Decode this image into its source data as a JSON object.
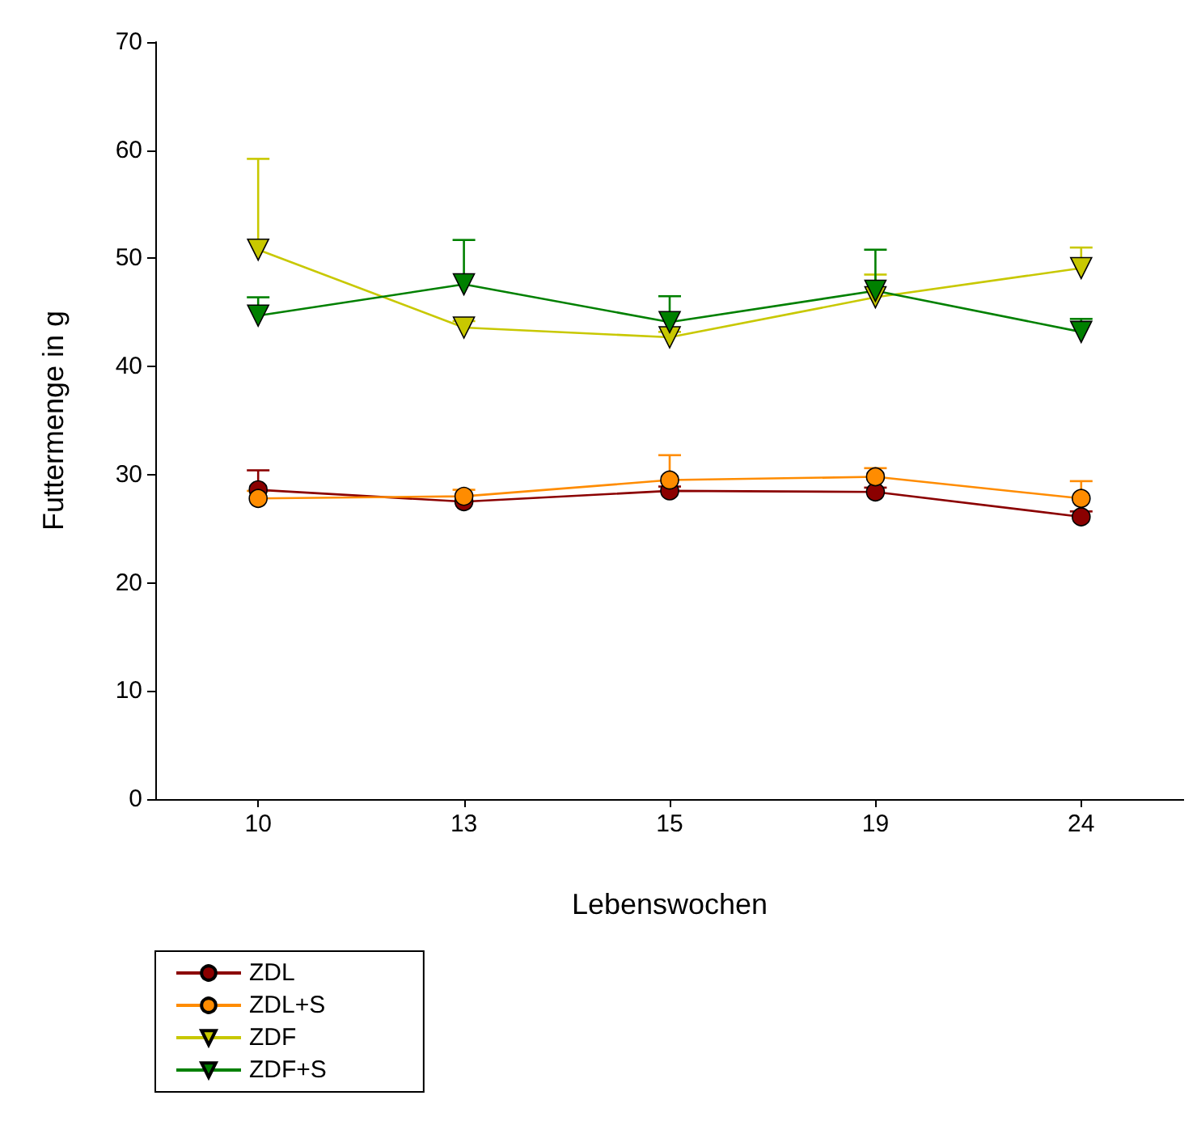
{
  "chart_data": {
    "type": "line",
    "xlabel": "Lebenswochen",
    "ylabel": "Futtermenge in g",
    "categories": [
      "10",
      "13",
      "15",
      "19",
      "24"
    ],
    "ylim": [
      0,
      70
    ],
    "yticks": [
      0,
      10,
      20,
      30,
      40,
      50,
      60,
      70
    ],
    "grid": false,
    "legend": "bottom left",
    "series": [
      {
        "name": "ZDL",
        "color": "#8b0000",
        "marker": "circle",
        "values": [
          28.6,
          27.5,
          28.5,
          28.4,
          26.1
        ],
        "errors": [
          [
            28.6,
            30.4
          ],
          null,
          [
            28.5,
            28.9
          ],
          [
            28.4,
            28.8
          ],
          [
            26.1,
            26.6
          ]
        ]
      },
      {
        "name": "ZDL+S",
        "color": "#ff8c00",
        "marker": "circle",
        "values": [
          27.8,
          28.0,
          29.5,
          29.8,
          27.8
        ],
        "errors": [
          [
            27.8,
            28.5
          ],
          [
            28.0,
            28.6
          ],
          [
            29.5,
            31.8
          ],
          [
            29.8,
            30.6
          ],
          [
            27.8,
            29.4
          ]
        ]
      },
      {
        "name": "ZDF",
        "color": "#c8c800",
        "marker": "triangle",
        "values": [
          50.8,
          43.6,
          42.7,
          46.4,
          49.1
        ],
        "errors": [
          [
            50.8,
            59.2
          ],
          [
            43.6,
            44.2
          ],
          [
            42.7,
            43.2
          ],
          [
            46.4,
            48.5
          ],
          [
            49.1,
            51.0
          ]
        ]
      },
      {
        "name": "ZDF+S",
        "color": "#008000",
        "marker": "triangle",
        "values": [
          44.7,
          47.6,
          44.1,
          47.0,
          43.2
        ],
        "errors": [
          [
            44.7,
            46.4
          ],
          [
            47.6,
            51.7
          ],
          [
            44.1,
            46.5
          ],
          [
            47.0,
            50.8
          ],
          [
            43.2,
            44.4
          ]
        ]
      }
    ]
  }
}
